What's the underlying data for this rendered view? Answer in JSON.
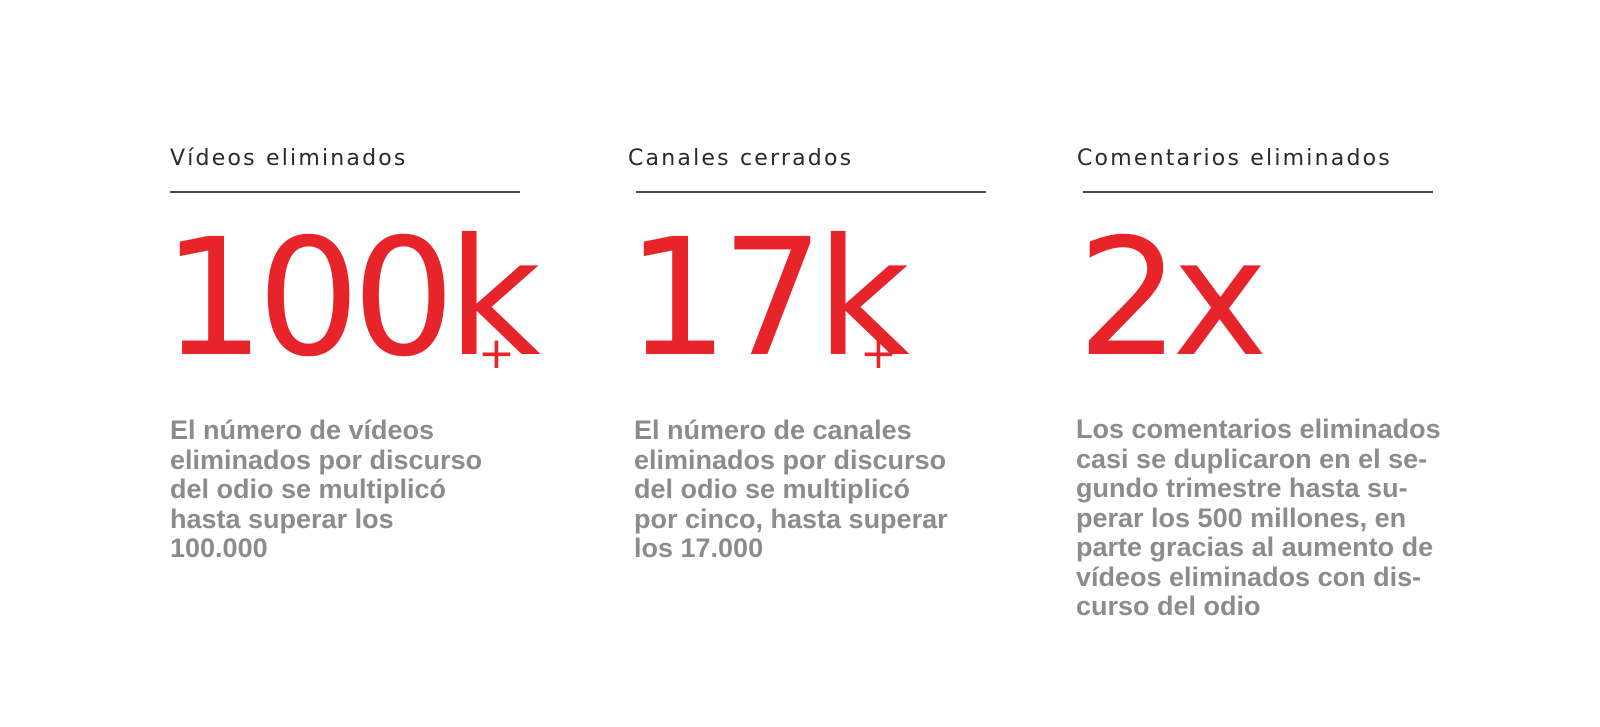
{
  "stats": [
    {
      "label": "Vídeos eliminados",
      "value": "100k",
      "suffix": "+",
      "description": "El número de vídeos\neliminados por discurso\ndel odio se multiplicó\nhasta superar los\n100.000"
    },
    {
      "label": "Canales cerrados",
      "value": "17k",
      "suffix": "+",
      "description": "El número de canales\neliminados por discurso\ndel odio se multiplicó\npor cinco, hasta superar\nlos 17.000"
    },
    {
      "label": "Comentarios eliminados",
      "value": "2x",
      "suffix": "",
      "description": "Los comentarios eliminados\ncasi se duplicaron en el se-\ngundo trimestre hasta su-\nperar los 500 millones, en\nparte gracias al aumento de\nvídeos eliminados con dis-\ncurso del odio"
    }
  ],
  "colors": {
    "accent": "#e8242b",
    "label": "#2a2a2a",
    "rule": "#4a4a4a",
    "description": "#8c8c8c",
    "background": "#ffffff"
  }
}
